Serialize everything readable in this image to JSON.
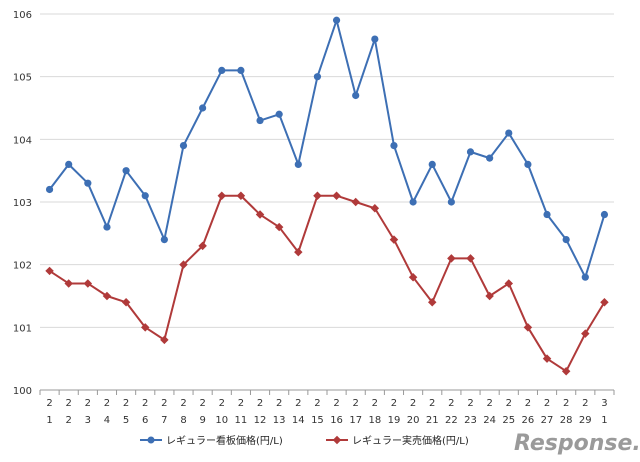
{
  "chart_data": {
    "type": "line",
    "categories": [
      [
        "2",
        "1"
      ],
      [
        "2",
        "2"
      ],
      [
        "2",
        "3"
      ],
      [
        "2",
        "4"
      ],
      [
        "2",
        "5"
      ],
      [
        "2",
        "6"
      ],
      [
        "2",
        "7"
      ],
      [
        "2",
        "8"
      ],
      [
        "2",
        "9"
      ],
      [
        "2",
        "10"
      ],
      [
        "2",
        "11"
      ],
      [
        "2",
        "12"
      ],
      [
        "2",
        "13"
      ],
      [
        "2",
        "14"
      ],
      [
        "2",
        "15"
      ],
      [
        "2",
        "16"
      ],
      [
        "2",
        "17"
      ],
      [
        "2",
        "18"
      ],
      [
        "2",
        "19"
      ],
      [
        "2",
        "20"
      ],
      [
        "2",
        "21"
      ],
      [
        "2",
        "22"
      ],
      [
        "2",
        "23"
      ],
      [
        "2",
        "24"
      ],
      [
        "2",
        "25"
      ],
      [
        "2",
        "26"
      ],
      [
        "2",
        "27"
      ],
      [
        "2",
        "28"
      ],
      [
        "2",
        "29"
      ],
      [
        "3",
        "1"
      ]
    ],
    "series": [
      {
        "name": "レギュラー看板価格(円/L)",
        "color": "#3d6fb4",
        "marker": "circle",
        "values": [
          103.2,
          103.6,
          103.3,
          102.6,
          103.5,
          103.1,
          102.4,
          103.9,
          104.5,
          105.1,
          105.1,
          104.3,
          104.4,
          103.6,
          105.0,
          105.9,
          104.7,
          105.6,
          103.9,
          103.0,
          103.6,
          103.0,
          103.8,
          103.7,
          104.1,
          103.6,
          102.8,
          102.4,
          101.8,
          102.8
        ]
      },
      {
        "name": "レギュラー実売価格(円/L)",
        "color": "#b03a3a",
        "marker": "diamond",
        "values": [
          101.9,
          101.7,
          101.7,
          101.5,
          101.4,
          101.0,
          100.8,
          102.0,
          102.3,
          103.1,
          103.1,
          102.8,
          102.6,
          102.2,
          103.1,
          103.1,
          103.0,
          102.9,
          102.4,
          101.8,
          101.4,
          102.1,
          102.1,
          101.5,
          101.7,
          101.0,
          100.5,
          100.3,
          100.9,
          101.4
        ]
      }
    ],
    "ylim": [
      100,
      106
    ],
    "yticks": [
      "100",
      "101",
      "102",
      "103",
      "104",
      "105",
      "106"
    ],
    "grid": true,
    "legend_position": "bottom"
  },
  "watermark": {
    "text": "Response.",
    "color": "#9a9a9a"
  }
}
